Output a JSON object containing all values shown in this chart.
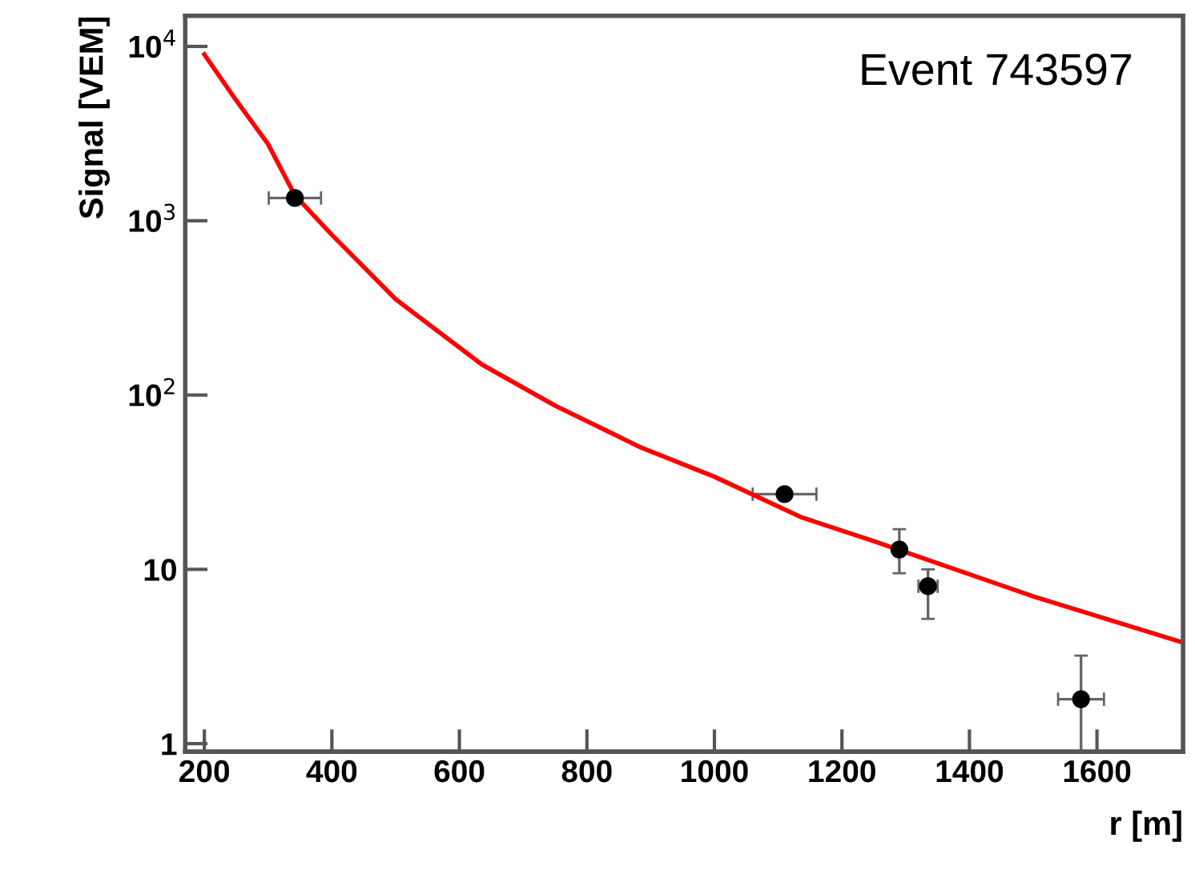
{
  "chart_data": {
    "type": "scatter",
    "xlabel": "r [m]",
    "ylabel": "Signal [VEM]",
    "annotations": [
      "Event 743597"
    ],
    "log": "y",
    "xlim": [
      170,
      1735
    ],
    "ylim": [
      0.9,
      15000
    ],
    "xticks": [
      200,
      400,
      600,
      800,
      1000,
      1200,
      1400,
      1600
    ],
    "yticks": [
      {
        "value": 1,
        "label": "1"
      },
      {
        "value": 10,
        "label": "10"
      },
      {
        "value": 100,
        "label": "10$^{2}$"
      },
      {
        "value": 1000,
        "label": "10$^{3}$"
      },
      {
        "value": 10000,
        "label": "10$^{4}$"
      }
    ],
    "grid": false,
    "legend": false,
    "series": [
      {
        "color": "#000000",
        "marker": "circle",
        "x": [
          342,
          1110,
          1290,
          1335,
          1575
        ],
        "values": [
          1350,
          27,
          13,
          8,
          1.8
        ],
        "errors": [
          null,
          null,
          [
            9.5,
            17
          ],
          [
            5.2,
            10
          ],
          [
            0.9,
            3.2
          ]
        ],
        "xerrors": [
          41,
          50,
          null,
          15,
          36
        ]
      },
      {
        "type": "line",
        "color": "#ff0000",
        "line_style": "solid",
        "marker": "none",
        "x": [
          200,
          250,
          300,
          342,
          400,
          500,
          635,
          750,
          885,
          1000,
          1135,
          1250,
          1500,
          1735
        ],
        "values": [
          9000,
          4900,
          2750,
          1400,
          830,
          355,
          150,
          87,
          50,
          34,
          20,
          14.5,
          7,
          3.8
        ]
      }
    ]
  }
}
